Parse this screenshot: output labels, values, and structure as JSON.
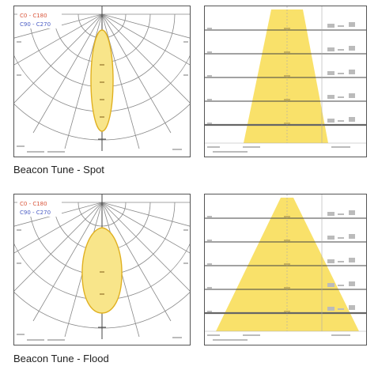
{
  "captions": {
    "spot": "Beacon Tune - Spot",
    "flood": "Beacon Tune - Flood"
  },
  "legend": {
    "c0_c180": "C0 - C180",
    "c90_c270": "C90 - C270"
  },
  "colors": {
    "beam_fill": "#f8e58a",
    "beam_outline": "#e0b020",
    "cone_fill": "#f9e16a",
    "legend_red": "#d9553a",
    "legend_blue": "#4a5cc4"
  },
  "diagrams": {
    "spot": {
      "lobe_relative_width": 0.18,
      "cone_bottom_relative_width": 0.52
    },
    "flood": {
      "lobe_relative_width": 0.33,
      "cone_bottom_relative_width": 0.88
    }
  }
}
